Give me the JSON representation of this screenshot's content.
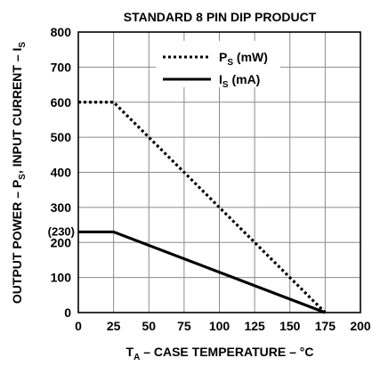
{
  "chart_data": {
    "type": "line",
    "title": "STANDARD 8 PIN DIP PRODUCT",
    "xlabel": {
      "main": "T",
      "sub": "A",
      "rest": " – CASE TEMPERATURE – °C"
    },
    "ylabel": {
      "a": "OUTPUT POWER – P",
      "a_sub": "S",
      "b": ", INPUT CURRENT – I",
      "b_sub": "S"
    },
    "xlim": [
      0,
      200
    ],
    "ylim": [
      0,
      800
    ],
    "xticks": [
      0,
      25,
      50,
      75,
      100,
      125,
      150,
      175,
      200
    ],
    "yticks": [
      0,
      100,
      200,
      300,
      400,
      500,
      600,
      700,
      800
    ],
    "grid": true,
    "legend_position": "top-right",
    "annotation": "(230)",
    "annotation_value": 230,
    "series": [
      {
        "name": "P",
        "name_sub": "S",
        "name_rest": " (mW)",
        "style": "dotted",
        "x": [
          0,
          25,
          175
        ],
        "y": [
          600,
          600,
          0
        ]
      },
      {
        "name": "I",
        "name_sub": "S",
        "name_rest": " (mA)",
        "style": "solid",
        "x": [
          0,
          25,
          175
        ],
        "y": [
          230,
          230,
          0
        ]
      }
    ]
  }
}
